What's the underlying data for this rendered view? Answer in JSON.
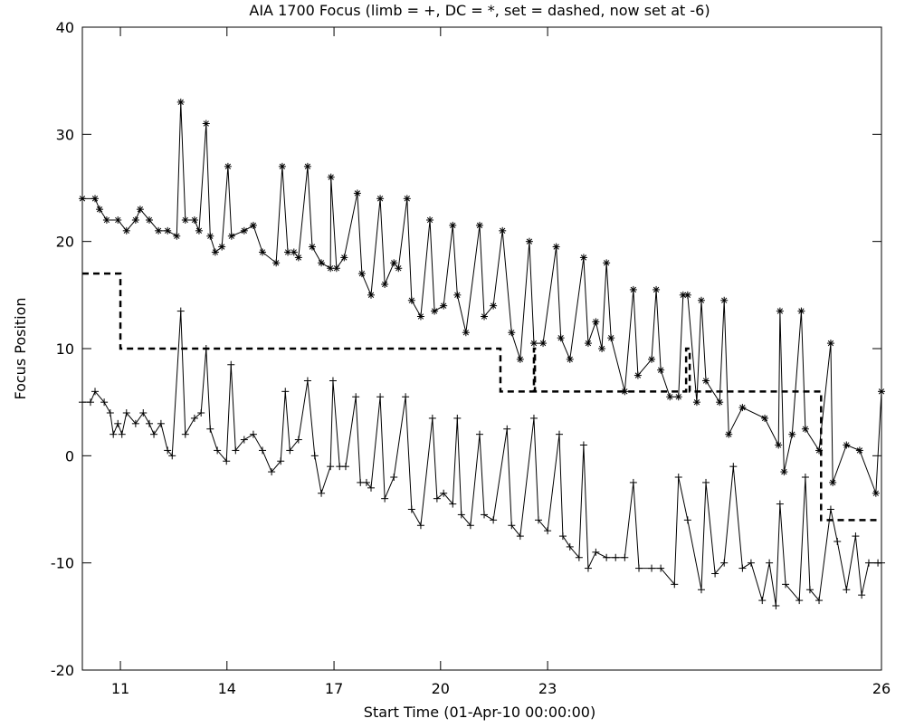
{
  "chart_data": {
    "type": "line",
    "title": "AIA 1700 Focus (limb = +, DC = *, set = dashed, now set at -6)",
    "x_label": "Start Time (01-Apr-10 00:00:00)",
    "y_label": "Focus Position",
    "xlim": [
      10.25,
      26
    ],
    "ylim": [
      -20,
      40
    ],
    "xticks": [
      11,
      {
        "value": 13.1,
        "label": "14"
      },
      {
        "value": 15.21,
        "label": "17"
      },
      {
        "value": 17.31,
        "label": "20"
      },
      {
        "value": 19.42,
        "label": "23"
      },
      26
    ],
    "yticks": [
      -20,
      -10,
      0,
      10,
      20,
      30,
      40
    ],
    "series": [
      {
        "color": "#000000",
        "marker": "*",
        "dashed": false,
        "x": [
          10.25,
          10.5,
          10.59,
          10.73,
          10.95,
          11.12,
          11.3,
          11.39,
          11.57,
          11.75,
          11.93,
          12.11,
          12.19,
          12.28,
          12.46,
          12.55,
          12.69,
          12.77,
          12.87,
          13.0,
          13.12,
          13.19,
          13.44,
          13.62,
          13.8,
          14.07,
          14.19,
          14.3,
          14.42,
          14.51,
          14.69,
          14.78,
          14.96,
          15.14,
          15.15,
          15.26,
          15.41,
          15.67,
          15.76,
          15.94,
          16.12,
          16.21,
          16.39,
          16.48,
          16.65,
          16.74,
          16.92,
          17.1,
          17.19,
          17.37,
          17.55,
          17.64,
          17.81,
          18.08,
          18.17,
          18.35,
          18.53,
          18.71,
          18.88,
          19.06,
          19.15,
          19.33,
          19.59,
          19.68,
          19.86,
          20.13,
          20.22,
          20.37,
          20.49,
          20.58,
          20.67,
          20.94,
          21.11,
          21.2,
          21.47,
          21.56,
          21.65,
          21.83,
          22.0,
          22.09,
          22.18,
          22.36,
          22.45,
          22.54,
          22.81,
          22.9,
          22.99,
          23.26,
          23.7,
          23.97,
          24.0,
          24.08,
          24.24,
          24.42,
          24.5,
          24.77,
          25.0,
          25.04,
          25.31,
          25.57,
          25.89,
          26.0
        ],
        "values": [
          24,
          24,
          23,
          22,
          22,
          21,
          22,
          23,
          22,
          21,
          21,
          20.5,
          33,
          22,
          22,
          21,
          31,
          20.5,
          19,
          19.5,
          27,
          20.5,
          21,
          21.5,
          19,
          18,
          27,
          19,
          19,
          18.5,
          27,
          19.5,
          18,
          17.5,
          26,
          17.5,
          18.5,
          24.5,
          17,
          15,
          24,
          16,
          18,
          17.5,
          24,
          14.5,
          13,
          22,
          13.5,
          14,
          21.5,
          15,
          11.5,
          21.5,
          13,
          14,
          21,
          11.5,
          9,
          20,
          10.5,
          10.5,
          19.5,
          11,
          9,
          18.5,
          10.5,
          12.5,
          10,
          18,
          11,
          6,
          15.5,
          7.5,
          9,
          15.5,
          8,
          5.5,
          5.5,
          15,
          15,
          5,
          14.5,
          7,
          5,
          14.5,
          2,
          4.5,
          3.5,
          1,
          13.5,
          -1.5,
          2,
          13.5,
          2.5,
          0.5,
          10.5,
          -2.5,
          1,
          0.5,
          -3.5,
          6
        ]
      },
      {
        "color": "#000000",
        "marker": "+",
        "dashed": false,
        "x": [
          10.25,
          10.41,
          10.5,
          10.68,
          10.8,
          10.86,
          10.95,
          11.03,
          11.12,
          11.3,
          11.45,
          11.57,
          11.66,
          11.8,
          11.93,
          12.02,
          12.19,
          12.28,
          12.46,
          12.59,
          12.69,
          12.77,
          12.91,
          13.09,
          13.18,
          13.27,
          13.44,
          13.62,
          13.8,
          13.98,
          14.16,
          14.25,
          14.34,
          14.51,
          14.69,
          14.83,
          14.96,
          15.14,
          15.19,
          15.32,
          15.44,
          15.64,
          15.73,
          15.85,
          15.94,
          16.12,
          16.21,
          16.39,
          16.62,
          16.74,
          16.92,
          17.15,
          17.24,
          17.37,
          17.55,
          17.64,
          17.72,
          17.9,
          18.08,
          18.17,
          18.35,
          18.62,
          18.71,
          18.88,
          19.15,
          19.24,
          19.42,
          19.65,
          19.72,
          19.86,
          20.04,
          20.13,
          20.22,
          20.37,
          20.58,
          20.76,
          20.94,
          21.11,
          21.22,
          21.47,
          21.65,
          21.92,
          22.0,
          22.18,
          22.45,
          22.54,
          22.72,
          22.9,
          23.08,
          23.26,
          23.43,
          23.65,
          23.79,
          23.92,
          24.0,
          24.11,
          24.38,
          24.5,
          24.59,
          24.77,
          25.0,
          25.13,
          25.31,
          25.49,
          25.61,
          25.75,
          25.93,
          26.0
        ],
        "values": [
          5,
          5,
          6,
          5,
          4,
          2,
          3,
          2,
          4,
          3,
          4,
          3,
          2,
          3,
          0.5,
          0,
          13.5,
          2,
          3.5,
          4,
          10,
          2.5,
          0.5,
          -0.5,
          8.5,
          0.5,
          1.5,
          2,
          0.5,
          -1.5,
          -0.5,
          6,
          0.5,
          1.5,
          7,
          0,
          -3.5,
          -1,
          7,
          -1,
          -1,
          5.5,
          -2.5,
          -2.5,
          -3,
          5.5,
          -4,
          -2,
          5.5,
          -5,
          -6.5,
          3.5,
          -4,
          -3.5,
          -4.5,
          3.5,
          -5.5,
          -6.5,
          2,
          -5.5,
          -6,
          2.5,
          -6.5,
          -7.5,
          3.5,
          -6,
          -7,
          2,
          -7.5,
          -8.5,
          -9.5,
          1,
          -10.5,
          -9,
          -9.5,
          -9.5,
          -9.5,
          -2.5,
          -10.5,
          -10.5,
          -10.5,
          -12,
          -2,
          -6,
          -12.5,
          -2.5,
          -11,
          -10,
          -1,
          -10.5,
          -10,
          -13.5,
          -10,
          -14,
          -4.5,
          -12,
          -13.5,
          -2,
          -12.5,
          -13.5,
          -5,
          -8,
          -12.5,
          -7.5,
          -13,
          -10,
          -10,
          -10
        ]
      },
      {
        "color": "#000000",
        "dashed": true,
        "x": [
          10.25,
          11,
          11,
          18.49,
          18.49,
          19.15,
          19.15,
          19.17,
          19.17,
          22.15,
          22.15,
          22.22,
          22.22,
          24.81,
          24.81,
          26
        ],
        "values": [
          17,
          17,
          10,
          10,
          6,
          6,
          10,
          10,
          6,
          6,
          10,
          10,
          6,
          6,
          -6,
          -6
        ]
      }
    ]
  }
}
